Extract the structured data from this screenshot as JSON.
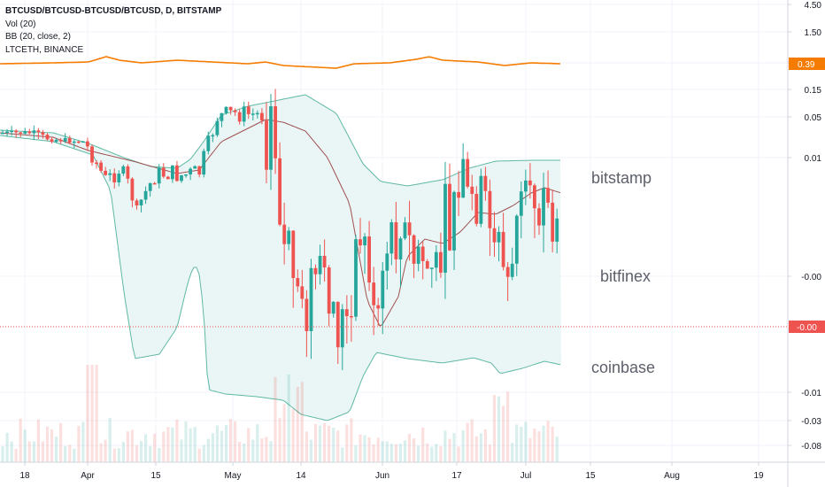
{
  "legend": {
    "symbol": "BTCUSD/BTCUSD-BTCUSD/BTCUSD, D, BITSTAMP",
    "volume": "Vol (20)",
    "bb": "BB (20, close, 2)",
    "compare": "LTCETH, BINANCE"
  },
  "annotations": [
    "bitstamp",
    "bitfinex",
    "coinbase"
  ],
  "colors": {
    "up": "#26a69a",
    "down": "#ef5350",
    "bb_line": "#5fb8a4",
    "bb_fill": "#eaf6f6",
    "basis": "#a05050",
    "compare": "#f57c00",
    "last_price": "#ef5350"
  },
  "chart_data": [
    {
      "type": "candlestick",
      "title": "BTCUSD/BTCUSD-BTCUSD/BTCUSD, D, BITSTAMP",
      "price_scale": "log",
      "y_tick_labels": [
        "4.50",
        "1.50",
        "0.50",
        "0.15",
        "0.05",
        "0.01",
        "-0.00",
        "-0.01",
        "-0.03",
        "-0.08"
      ],
      "x_tick_labels": [
        "18",
        "Apr",
        "15",
        "May",
        "14",
        "Jun",
        "17",
        "Jul",
        "15",
        "Aug",
        "19"
      ],
      "price_tags": [
        {
          "value": "0.39",
          "series": "LTCETH, BINANCE"
        },
        {
          "value": "-0.00",
          "series": "last price"
        }
      ],
      "indicators": [
        "Vol (20)",
        "BB (20, close, 2)"
      ],
      "compare_series": "LTCETH, BINANCE",
      "grid": true
    }
  ]
}
